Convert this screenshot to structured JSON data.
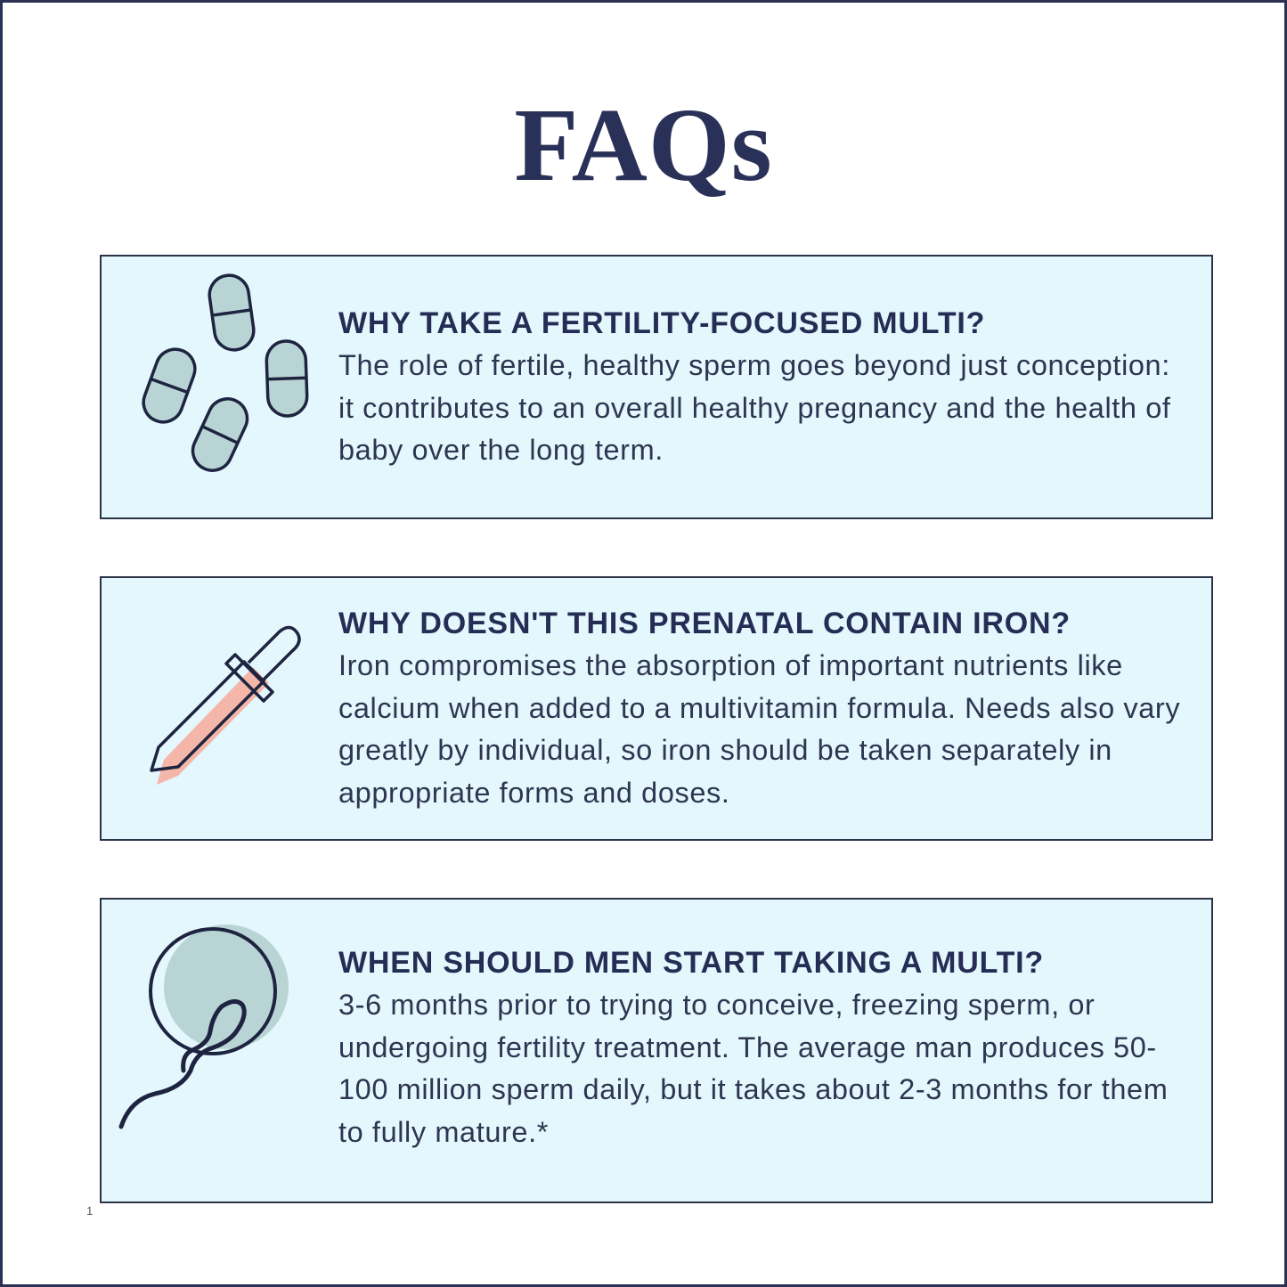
{
  "title": "FAQs",
  "colors": {
    "navy": "#2a3158",
    "card_bg": "#e3f7fd",
    "icon_fill": "#b9d4d4",
    "dropper_accent": "#f4b6a8"
  },
  "faqs": [
    {
      "icon": "pills-icon",
      "question": "WHY TAKE A FERTILITY-FOCUSED MULTI?",
      "answer": "The role of fertile, healthy sperm goes beyond just conception: it contributes to an overall healthy pregnancy and the health of baby over the long term."
    },
    {
      "icon": "dropper-icon",
      "question": "WHY DOESN'T THIS PRENATAL CONTAIN IRON?",
      "answer": "Iron compromises the absorption of important nutrients like calcium when added to a multivitamin formula. Needs also vary greatly by individual, so iron should be taken separately in appropriate forms and doses."
    },
    {
      "icon": "sperm-icon",
      "question": "WHEN SHOULD MEN START TAKING A MULTI?",
      "answer": "3-6 months prior to trying to conceive, freezing sperm, or undergoing fertility treatment. The average man produces 50-100 million sperm daily, but it takes about 2-3 months for them to fully mature.*"
    }
  ],
  "footnote": "1"
}
